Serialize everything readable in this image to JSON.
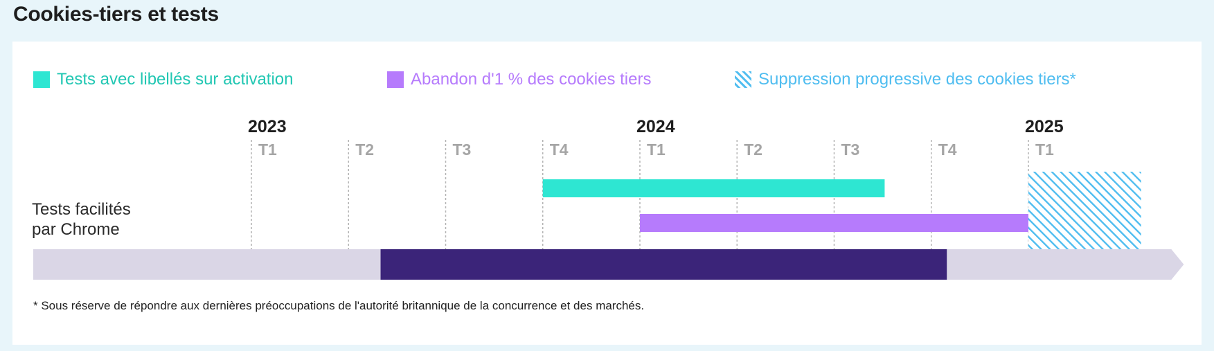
{
  "title": "Cookies-tiers et tests",
  "legend": [
    {
      "label": "Tests avec libellés sur activation",
      "color": "#2ee6d2",
      "pattern": "solid",
      "icon": "teal-square-icon"
    },
    {
      "label": "Abandon d'1 % des cookies tiers",
      "color": "#b67bfc",
      "pattern": "solid",
      "icon": "purple-square-icon"
    },
    {
      "label": "Suppression progressive des cookies tiers*",
      "color": "#4fbdf0",
      "pattern": "hatched",
      "icon": "hatched-square-icon"
    }
  ],
  "row_label_line1": "Tests facilités",
  "row_label_line2": "par Chrome",
  "footnote": "* Sous réserve de répondre aux dernières préoccupations de l'autorité britannique de la concurrence et des marchés.",
  "chart_data": {
    "type": "timeline",
    "years": [
      {
        "label": "2023",
        "at_quarter": 0
      },
      {
        "label": "2024",
        "at_quarter": 4
      },
      {
        "label": "2025",
        "at_quarter": 8
      }
    ],
    "quarters": [
      "T1",
      "T2",
      "T3",
      "T4",
      "T1",
      "T2",
      "T3",
      "T4",
      "T1"
    ],
    "quarter_start": 0,
    "quarter_end": 9.6,
    "bars": [
      {
        "series": "Tests avec libellés sur activation",
        "start": 3,
        "end": 6.52,
        "color": "#2ee6d2",
        "pattern": "solid"
      },
      {
        "series": "Abandon d'1 % des cookies tiers",
        "start": 4,
        "end": 8,
        "color": "#b67bfc",
        "pattern": "solid"
      },
      {
        "series": "Suppression progressive des cookies tiers*",
        "start": 8,
        "end": 9.16,
        "color": "#4fbdf0",
        "pattern": "hatched"
      },
      {
        "series": "Tests facilités par Chrome",
        "start": 1.33,
        "end": 7.16,
        "color": "#3b2479",
        "pattern": "solid"
      }
    ],
    "track_color": "#dad6e6"
  }
}
